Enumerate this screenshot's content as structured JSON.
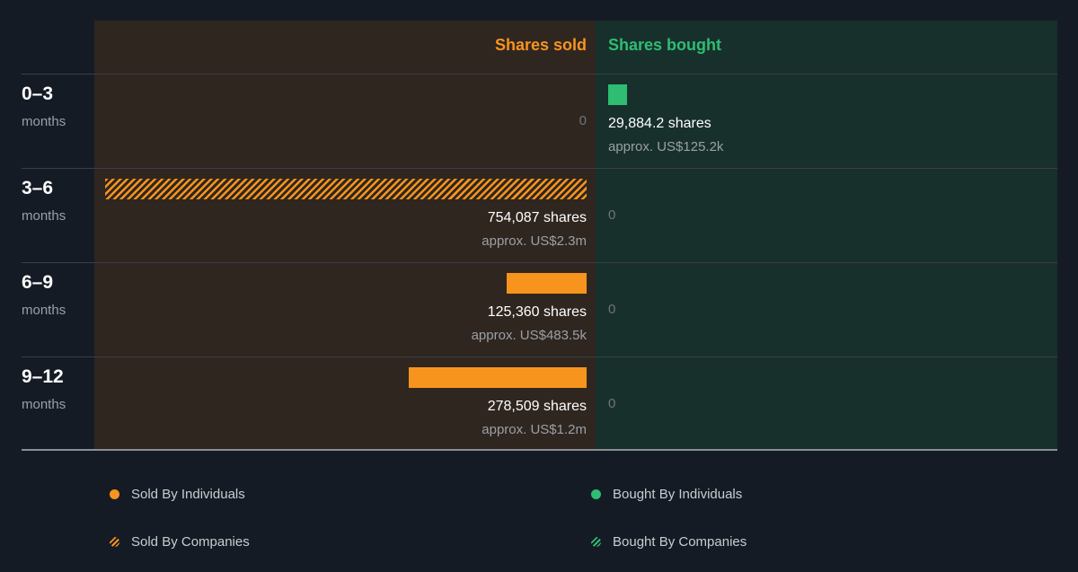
{
  "colors": {
    "sold": "#f7941d",
    "bought": "#2ebd72",
    "sold_panel": "#2f2620",
    "bought_panel": "#18302c",
    "background": "#151b24"
  },
  "headers": {
    "sold": "Shares sold",
    "bought": "Shares bought"
  },
  "chart_data": {
    "type": "bar",
    "orientation": "horizontal-diverging",
    "categories": [
      "0–3 months",
      "3–6 months",
      "6–9 months",
      "9–12 months"
    ],
    "rows": [
      {
        "period": "0–3",
        "unit": "months",
        "sold": {
          "shares": 0,
          "shares_label": "0",
          "approx_label": "",
          "type": "none"
        },
        "bought": {
          "shares": 29884.2,
          "shares_label": "29,884.2 shares",
          "approx_label": "approx. US$125.2k",
          "type": "individuals"
        }
      },
      {
        "period": "3–6",
        "unit": "months",
        "sold": {
          "shares": 754087,
          "shares_label": "754,087 shares",
          "approx_label": "approx. US$2.3m",
          "type": "companies"
        },
        "bought": {
          "shares": 0,
          "shares_label": "0",
          "approx_label": "",
          "type": "none"
        }
      },
      {
        "period": "6–9",
        "unit": "months",
        "sold": {
          "shares": 125360,
          "shares_label": "125,360 shares",
          "approx_label": "approx. US$483.5k",
          "type": "individuals"
        },
        "bought": {
          "shares": 0,
          "shares_label": "0",
          "approx_label": "",
          "type": "none"
        }
      },
      {
        "period": "9–12",
        "unit": "months",
        "sold": {
          "shares": 278509,
          "shares_label": "278,509 shares",
          "approx_label": "approx. US$1.2m",
          "type": "individuals"
        },
        "bought": {
          "shares": 0,
          "shares_label": "0",
          "approx_label": "",
          "type": "none"
        }
      }
    ],
    "max_shares": 754087,
    "legend": [
      {
        "label": "Sold By Individuals",
        "style": "solid-orange"
      },
      {
        "label": "Bought By Individuals",
        "style": "solid-green"
      },
      {
        "label": "Sold By Companies",
        "style": "striped-orange"
      },
      {
        "label": "Bought By Companies",
        "style": "striped-green"
      }
    ]
  }
}
